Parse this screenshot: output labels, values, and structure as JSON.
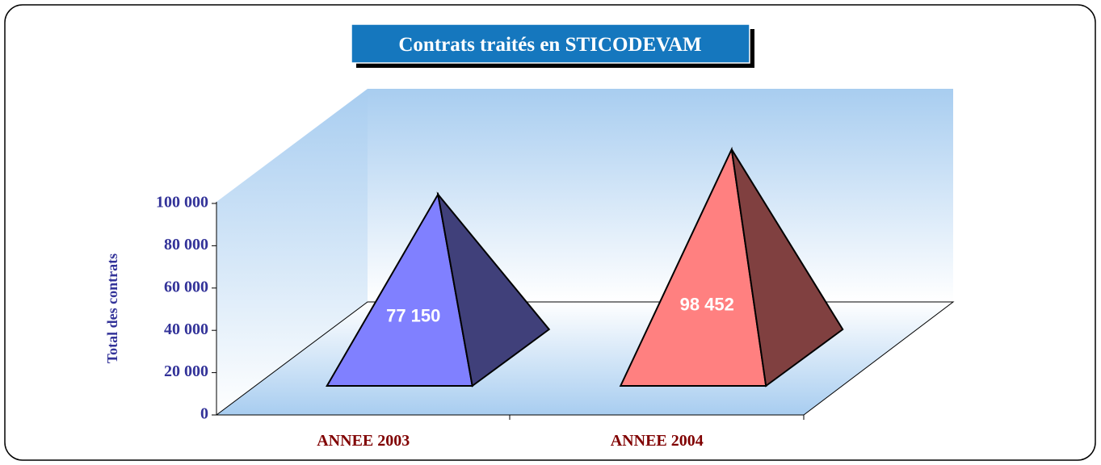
{
  "chart_data": {
    "type": "pyramid",
    "title": "Contrats traités en STICODEVAM",
    "y_label": "Total des contrats",
    "categories": [
      "ANNEE 2003",
      "ANNEE 2004"
    ],
    "values": [
      77150,
      98452
    ],
    "value_labels": [
      "77 150",
      "98 452"
    ],
    "colors": [
      "#8080ff",
      "#ff8080"
    ],
    "side_colors": [
      "#40407a",
      "#804040"
    ],
    "ylim": [
      0,
      100000
    ],
    "yticks": [
      0,
      {
        "value": 20000,
        "label": "20 000"
      },
      {
        "value": 40000,
        "label": "40 000"
      },
      {
        "value": 60000,
        "label": "60 000"
      },
      {
        "value": 80000,
        "label": "80 000"
      },
      {
        "value": 100000,
        "label": "100 000"
      }
    ]
  }
}
